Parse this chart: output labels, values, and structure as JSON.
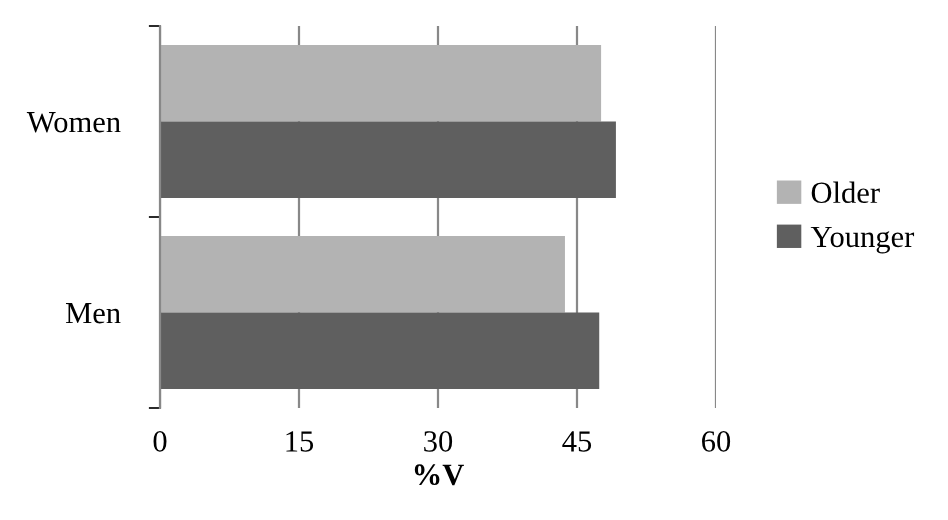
{
  "chart_data": {
    "type": "bar",
    "orientation": "horizontal",
    "xlabel": "%V",
    "categories": [
      "Women",
      "Men"
    ],
    "series": [
      {
        "name": "Older",
        "color": "#b3b3b3",
        "values": [
          47.6,
          43.7
        ]
      },
      {
        "name": "Younger",
        "color": "#5f5f5f",
        "values": [
          49.2,
          47.4
        ]
      }
    ],
    "xlim": [
      0,
      60
    ],
    "xticks": [
      0,
      15,
      30,
      45,
      60
    ],
    "grid": "x",
    "legend": "right"
  }
}
